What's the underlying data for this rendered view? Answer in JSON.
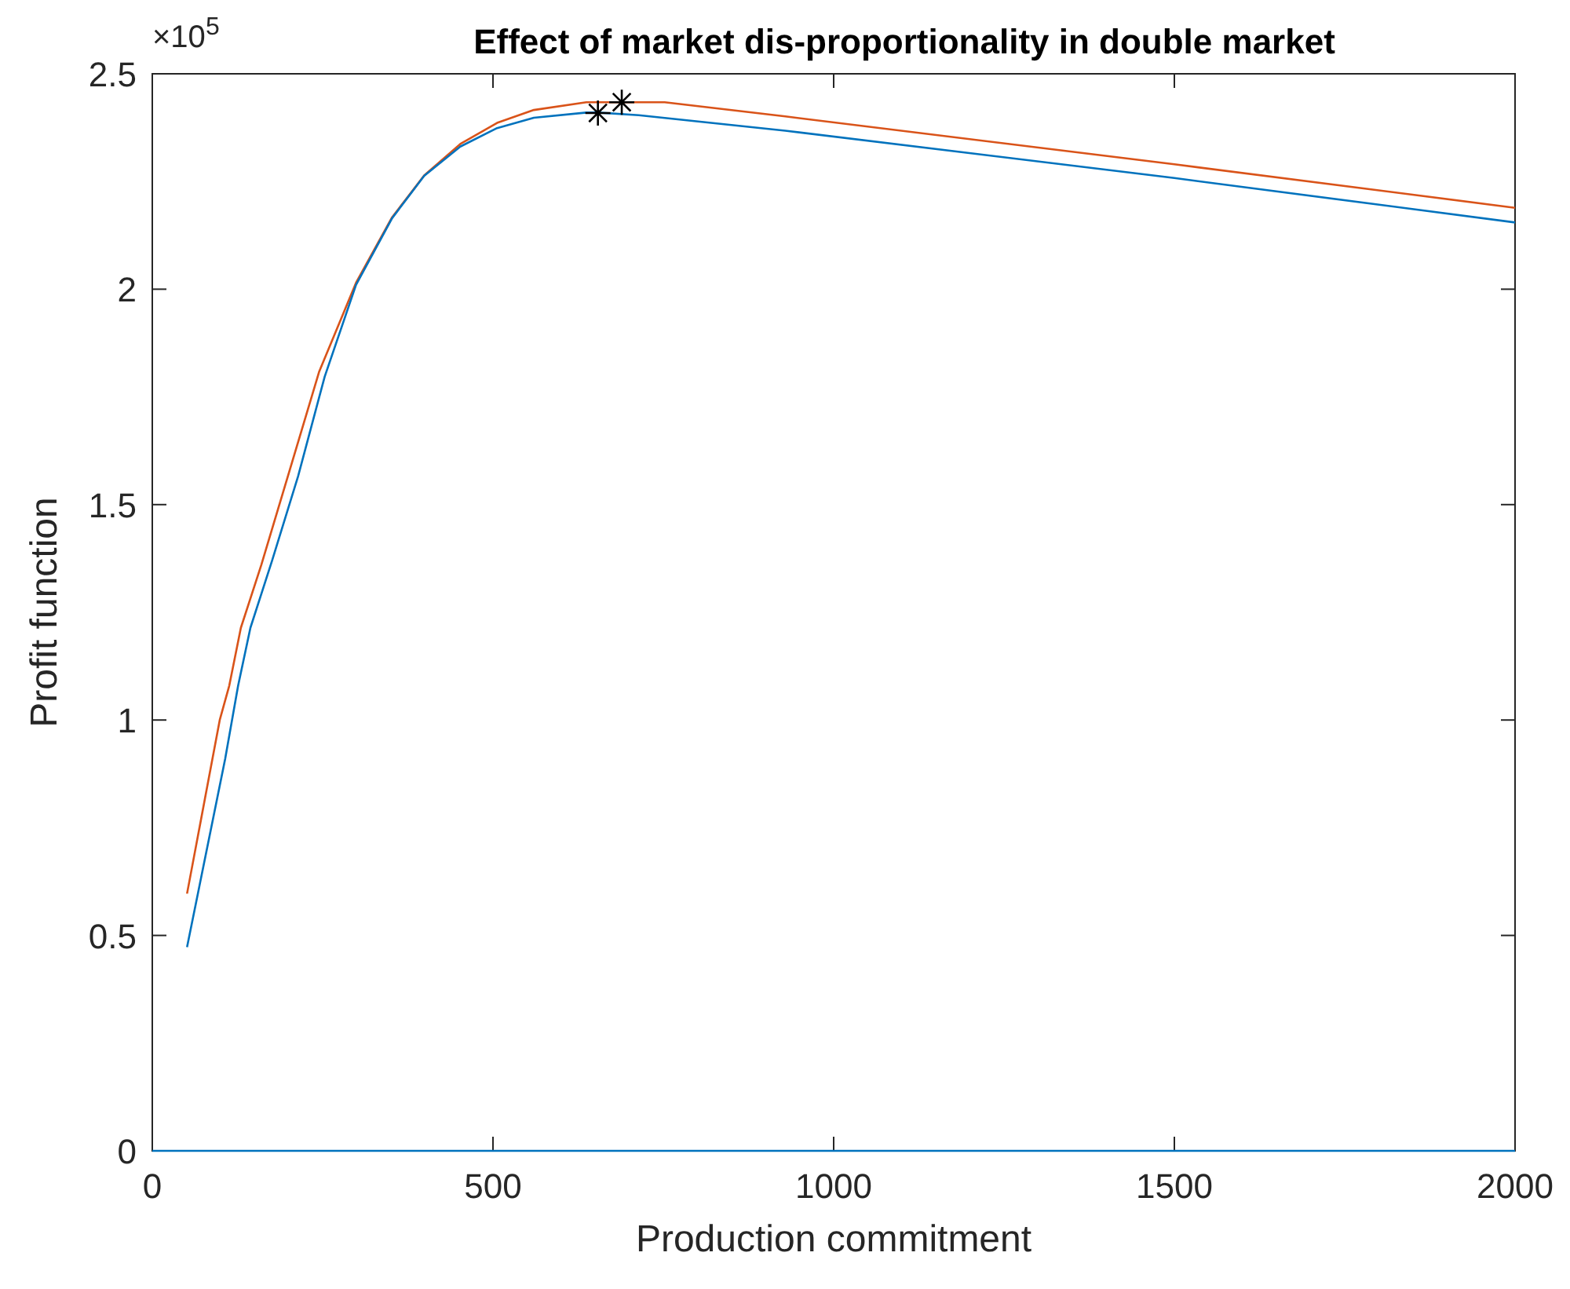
{
  "chart_data": {
    "type": "line",
    "title": "Effect of market dis-proportionality in double market",
    "xlabel": "Production commitment",
    "ylabel": "Profit function",
    "annotations": [
      "×10$^{5}$"
    ],
    "xlim": [
      0,
      2000
    ],
    "xticks": [
      0,
      500,
      1000,
      1500,
      2000
    ],
    "ylim": [
      0,
      2.5
    ],
    "yticks": [
      0,
      0.5,
      1,
      1.5,
      2,
      2.5
    ],
    "grid": false,
    "line_style": "solid",
    "marker": "none",
    "series": [
      {
        "color": "#d95319",
        "x": [
          51,
          99,
          113,
          130,
          160,
          199,
          245,
          299,
          352,
          399,
          452,
          506,
          560,
          637,
          689,
          752,
          929,
          1500,
          2000
        ],
        "values": [
          0.597,
          1.0,
          1.08,
          1.214,
          1.36,
          1.566,
          1.809,
          2.015,
          2.167,
          2.264,
          2.337,
          2.386,
          2.416,
          2.434,
          2.434,
          2.434,
          2.401,
          2.29,
          2.189
        ]
      },
      {
        "color": "#0072bd",
        "x": [
          51,
          107,
          126,
          144,
          176,
          214,
          253,
          299,
          352,
          399,
          452,
          506,
          560,
          637,
          654,
          714,
          929,
          1500,
          2000
        ],
        "values": [
          0.473,
          0.91,
          1.08,
          1.214,
          1.371,
          1.566,
          1.797,
          2.01,
          2.165,
          2.263,
          2.331,
          2.374,
          2.398,
          2.41,
          2.41,
          2.404,
          2.368,
          2.258,
          2.155
        ]
      },
      {
        "color": "#0072bd",
        "x": [
          0,
          2000
        ],
        "values": [
          0,
          0
        ]
      },
      {
        "type": "scatter",
        "color": "#000000",
        "marker": "cross",
        "x": [
          654,
          689
        ],
        "values": [
          2.409,
          2.434
        ]
      }
    ]
  }
}
